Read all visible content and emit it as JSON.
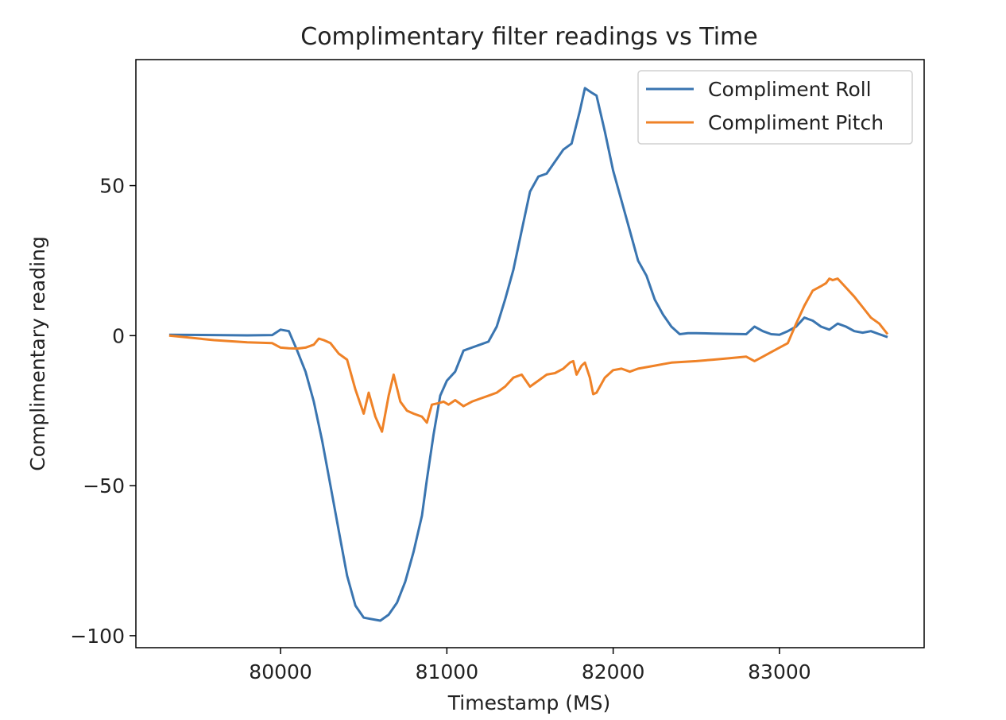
{
  "chart_data": {
    "type": "line",
    "title": "Complimentary filter readings vs Time",
    "xlabel": "Timestamp (MS)",
    "ylabel": "Complimentary reading",
    "xlim": [
      79130,
      83870
    ],
    "ylim": [
      -104,
      92
    ],
    "xticks": [
      80000,
      81000,
      82000,
      83000
    ],
    "xtick_labels": [
      "80000",
      "81000",
      "82000",
      "83000"
    ],
    "yticks": [
      50,
      0,
      -50,
      -100
    ],
    "ytick_labels": [
      "50",
      "0",
      "−50",
      "−100"
    ],
    "grid": false,
    "legend_position": "top-right",
    "series": [
      {
        "name": "Compliment Roll",
        "color": "#3a75b0",
        "x": [
          79330,
          79600,
          79800,
          79950,
          80000,
          80050,
          80100,
          80150,
          80200,
          80250,
          80300,
          80350,
          80400,
          80450,
          80500,
          80550,
          80600,
          80650,
          80700,
          80750,
          80800,
          80850,
          80880,
          80920,
          80960,
          81000,
          81050,
          81100,
          81150,
          81200,
          81250,
          81300,
          81350,
          81400,
          81450,
          81500,
          81550,
          81600,
          81650,
          81700,
          81750,
          81800,
          81830,
          81870,
          81900,
          81950,
          82000,
          82050,
          82100,
          82150,
          82200,
          82250,
          82300,
          82350,
          82400,
          82450,
          82500,
          82600,
          82700,
          82800,
          82850,
          82900,
          82950,
          83000,
          83050,
          83100,
          83150,
          83200,
          83250,
          83300,
          83350,
          83400,
          83450,
          83500,
          83550,
          83600,
          83650
        ],
        "values": [
          0.3,
          0.2,
          0.1,
          0.2,
          2.0,
          1.5,
          -5,
          -12,
          -22,
          -35,
          -50,
          -65,
          -80,
          -90,
          -94,
          -94.5,
          -95,
          -93,
          -89,
          -82,
          -72,
          -60,
          -48,
          -33,
          -20,
          -15,
          -12,
          -5,
          -4,
          -3,
          -2,
          3,
          12,
          22,
          35,
          48,
          53,
          54,
          58,
          62,
          64,
          75,
          82.5,
          81,
          80,
          68,
          55,
          45,
          35,
          25,
          20,
          12,
          7,
          3,
          0.5,
          0.8,
          0.8,
          0.7,
          0.6,
          0.5,
          3.0,
          1.5,
          0.5,
          0.3,
          1.5,
          3.0,
          6.0,
          5.0,
          3.0,
          2.0,
          4.0,
          3.0,
          1.5,
          1.0,
          1.5,
          0.5,
          -0.5
        ]
      },
      {
        "name": "Compliment Pitch",
        "color": "#ef8227",
        "x": [
          79330,
          79600,
          79800,
          79950,
          80000,
          80050,
          80100,
          80150,
          80200,
          80230,
          80260,
          80300,
          80350,
          80400,
          80450,
          80500,
          80530,
          80570,
          80610,
          80650,
          80680,
          80720,
          80760,
          80800,
          80850,
          80880,
          80910,
          80950,
          80980,
          81010,
          81050,
          81100,
          81150,
          81200,
          81250,
          81300,
          81350,
          81400,
          81450,
          81500,
          81550,
          81600,
          81650,
          81700,
          81740,
          81760,
          81780,
          81810,
          81830,
          81860,
          81880,
          81900,
          81950,
          82000,
          82050,
          82100,
          82150,
          82200,
          82250,
          82300,
          82350,
          82400,
          82500,
          82600,
          82700,
          82800,
          82850,
          82900,
          82950,
          83000,
          83050,
          83100,
          83150,
          83200,
          83250,
          83280,
          83300,
          83320,
          83350,
          83400,
          83450,
          83500,
          83550,
          83600,
          83650
        ],
        "values": [
          0.0,
          -1.5,
          -2.2,
          -2.5,
          -4.0,
          -4.2,
          -4.3,
          -4.0,
          -3.0,
          -1.0,
          -1.5,
          -2.5,
          -6.0,
          -8.0,
          -18.0,
          -26.0,
          -19.0,
          -27.0,
          -32.0,
          -20.0,
          -13.0,
          -22.0,
          -25.0,
          -26.0,
          -27.0,
          -29.0,
          -23.0,
          -22.5,
          -22.0,
          -23.0,
          -21.5,
          -23.5,
          -22.0,
          -21.0,
          -20.0,
          -19.0,
          -17.0,
          -14.0,
          -13.0,
          -17.0,
          -15.0,
          -13.0,
          -12.5,
          -11.0,
          -9.0,
          -8.5,
          -13.0,
          -10.0,
          -9.0,
          -14.0,
          -19.5,
          -19.0,
          -14.0,
          -11.5,
          -11.0,
          -12.0,
          -11.0,
          -10.5,
          -10.0,
          -9.5,
          -9.0,
          -8.8,
          -8.5,
          -8.0,
          -7.5,
          -7.0,
          -8.5,
          -7.0,
          -5.5,
          -4.0,
          -2.5,
          4.0,
          10.0,
          15.0,
          16.5,
          17.5,
          19.0,
          18.5,
          19.0,
          16.0,
          13.0,
          9.5,
          6.0,
          4.0,
          0.5
        ]
      }
    ]
  }
}
